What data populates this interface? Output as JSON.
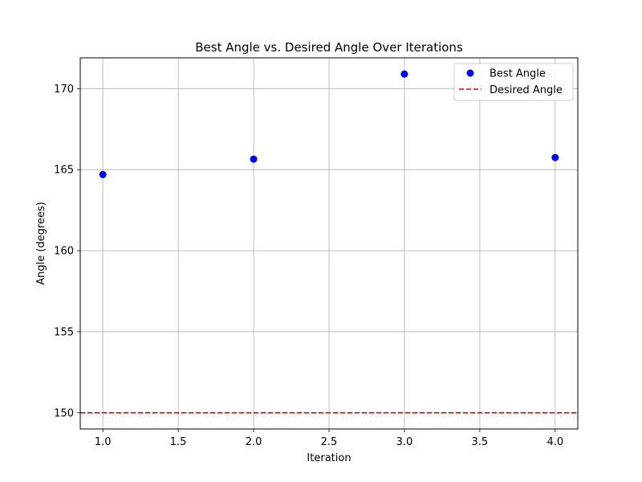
{
  "chart_data": {
    "type": "scatter",
    "title": "Best Angle vs. Desired Angle Over Iterations",
    "xlabel": "Iteration",
    "ylabel": "Angle (degrees)",
    "xlim": [
      0.85,
      4.15
    ],
    "ylim": [
      149.0,
      171.9
    ],
    "xticks": [
      1.0,
      1.5,
      2.0,
      2.5,
      3.0,
      3.5,
      4.0
    ],
    "xtick_labels": [
      "1.0",
      "1.5",
      "2.0",
      "2.5",
      "3.0",
      "3.5",
      "4.0"
    ],
    "yticks": [
      150,
      155,
      160,
      165,
      170
    ],
    "ytick_labels": [
      "150",
      "155",
      "160",
      "165",
      "170"
    ],
    "grid": true,
    "legend_position": "top-right",
    "series": [
      {
        "name": "Best Angle",
        "kind": "scatter",
        "color": "#0000ff",
        "x": [
          1,
          2,
          3,
          4
        ],
        "y": [
          164.7,
          165.65,
          170.9,
          165.75
        ]
      },
      {
        "name": "Desired Angle",
        "kind": "hline",
        "color": "#ff0000",
        "linestyle": "dashed",
        "y": 150
      }
    ]
  }
}
